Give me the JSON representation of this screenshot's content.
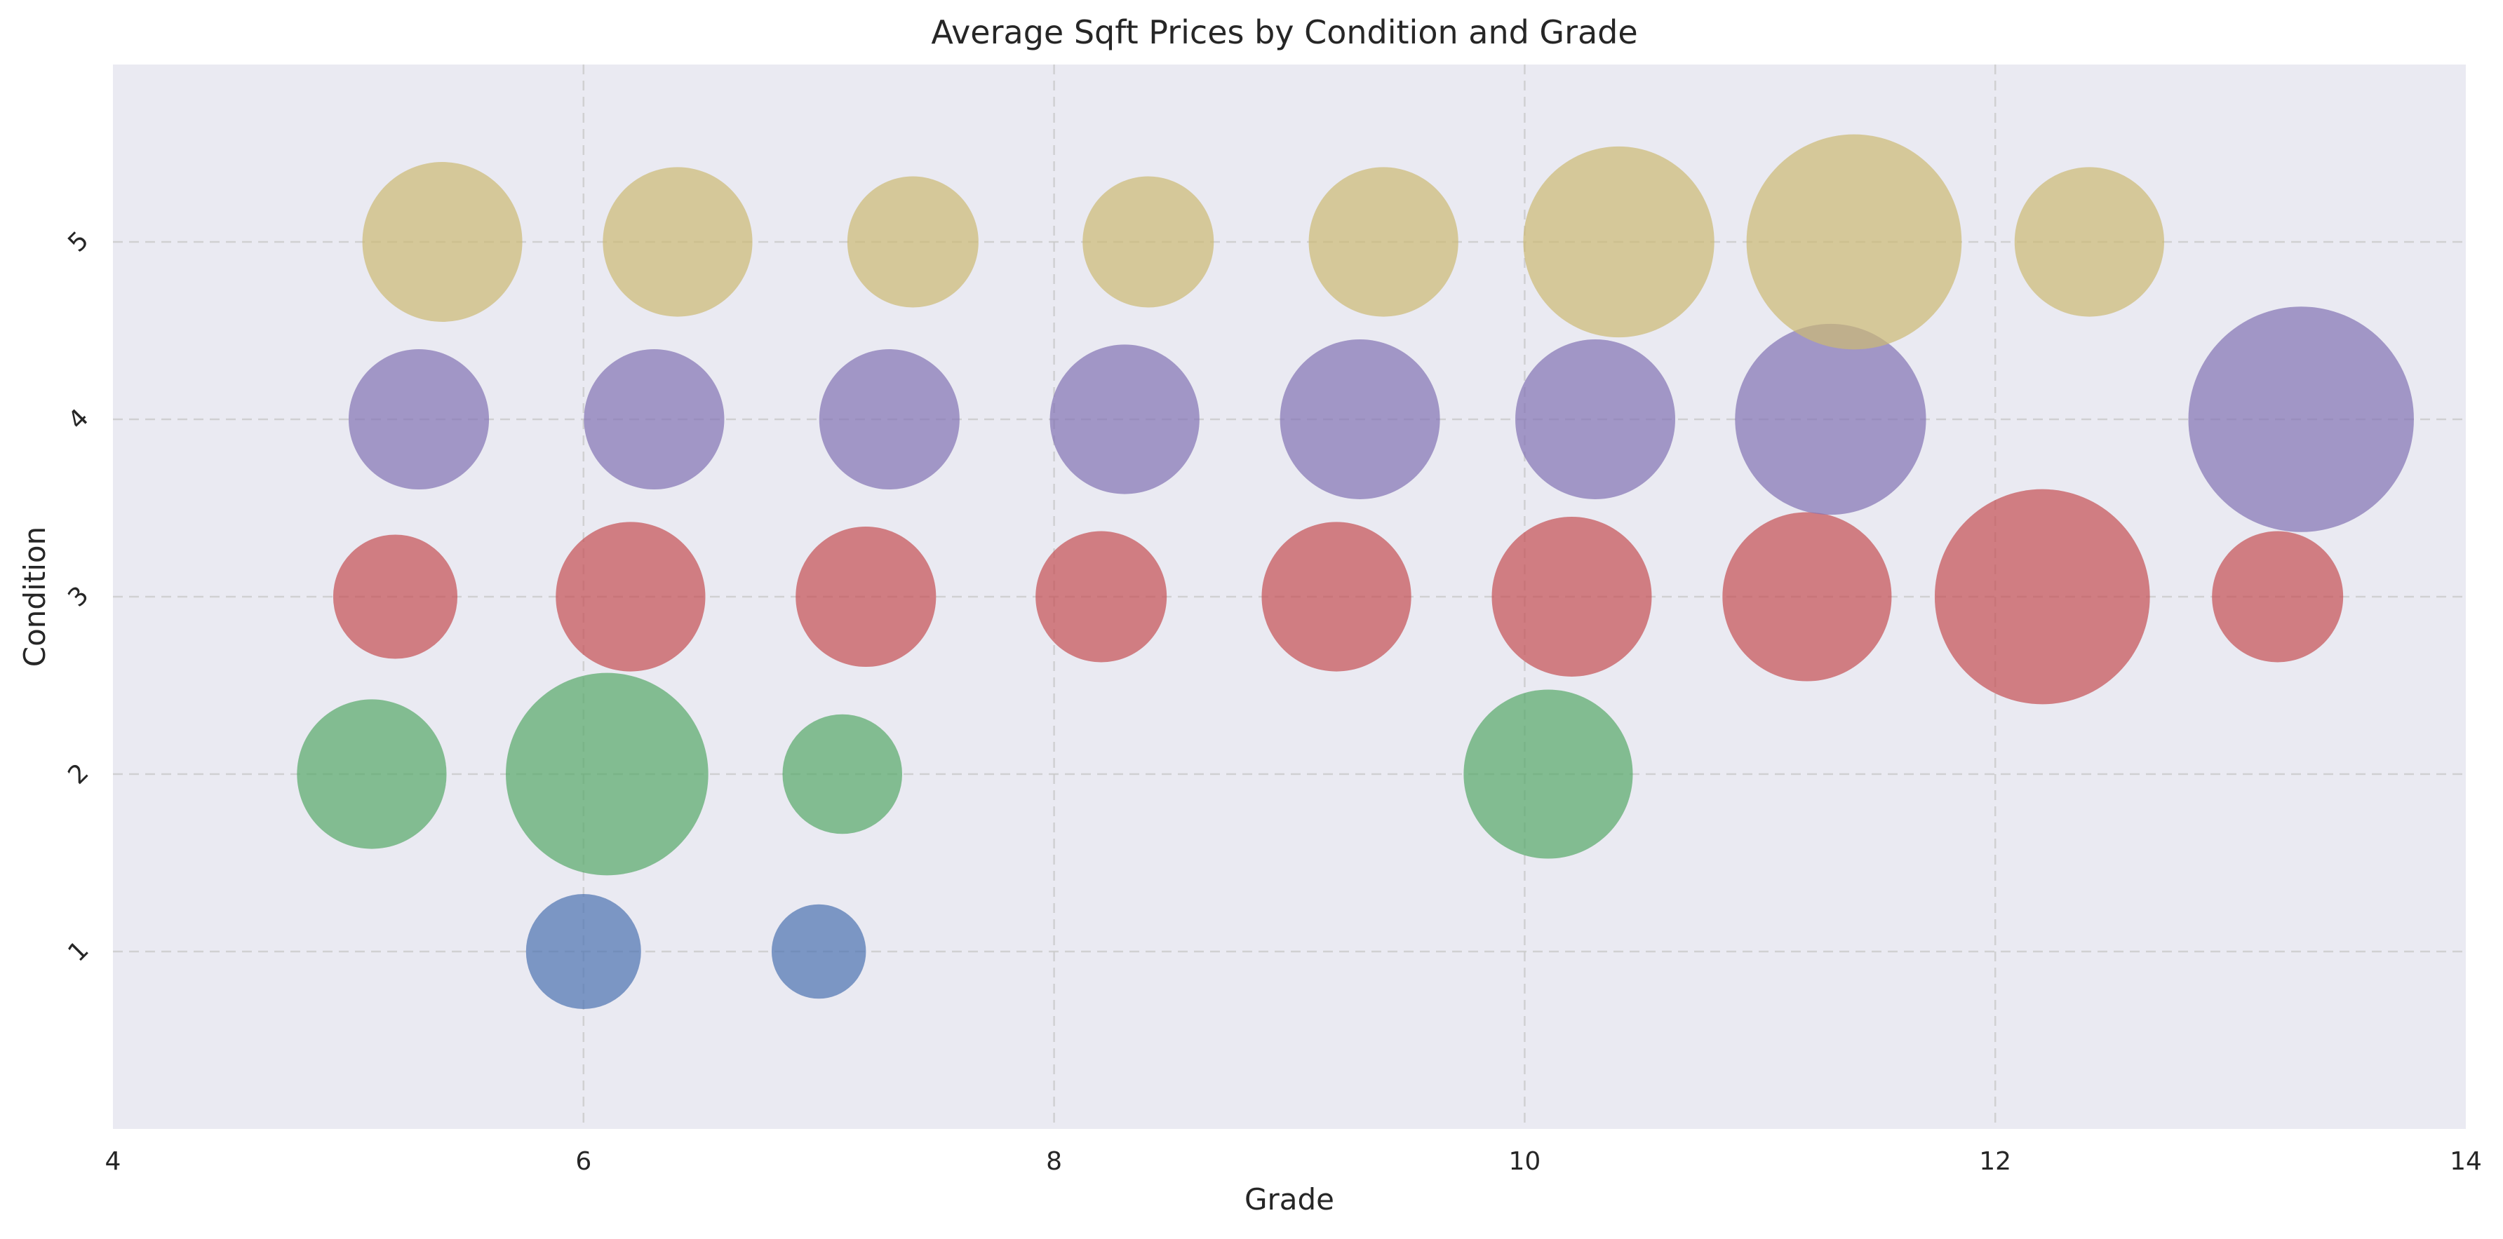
{
  "chart_data": {
    "type": "scatter",
    "title": "Average Sqft Prices by Condition and Grade",
    "xlabel": "Grade",
    "ylabel": "Condition",
    "xlim": [
      4,
      14
    ],
    "ylim": [
      0,
      6
    ],
    "xticks": [
      4,
      6,
      8,
      10,
      12,
      14
    ],
    "yticks": [
      1,
      2,
      3,
      4,
      5
    ],
    "grid": true,
    "legend": "none",
    "size_encoding": "relative average sqft price (bubble area)",
    "series": [
      {
        "condition": 1,
        "color": "#4c72b0",
        "points": [
          {
            "x": 6,
            "y": 1,
            "size": 1.0
          },
          {
            "x": 7,
            "y": 1,
            "size": 0.82
          }
        ]
      },
      {
        "condition": 2,
        "color": "#55a868",
        "points": [
          {
            "x": 5.1,
            "y": 2,
            "size": 1.3
          },
          {
            "x": 6.1,
            "y": 2,
            "size": 1.76
          },
          {
            "x": 7.1,
            "y": 2,
            "size": 1.04
          },
          {
            "x": 10.1,
            "y": 2,
            "size": 1.47
          }
        ]
      },
      {
        "condition": 3,
        "color": "#c44e52",
        "points": [
          {
            "x": 5.2,
            "y": 3,
            "size": 1.08
          },
          {
            "x": 6.2,
            "y": 3,
            "size": 1.3
          },
          {
            "x": 7.2,
            "y": 3,
            "size": 1.22
          },
          {
            "x": 8.2,
            "y": 3,
            "size": 1.14
          },
          {
            "x": 9.2,
            "y": 3,
            "size": 1.3
          },
          {
            "x": 10.2,
            "y": 3,
            "size": 1.39
          },
          {
            "x": 11.2,
            "y": 3,
            "size": 1.47
          },
          {
            "x": 12.2,
            "y": 3,
            "size": 1.87
          },
          {
            "x": 13.2,
            "y": 3,
            "size": 1.14
          }
        ]
      },
      {
        "condition": 4,
        "color": "#8172b3",
        "points": [
          {
            "x": 5.3,
            "y": 4,
            "size": 1.22
          },
          {
            "x": 6.3,
            "y": 4,
            "size": 1.22
          },
          {
            "x": 7.3,
            "y": 4,
            "size": 1.22
          },
          {
            "x": 8.3,
            "y": 4,
            "size": 1.3
          },
          {
            "x": 9.3,
            "y": 4,
            "size": 1.39
          },
          {
            "x": 10.3,
            "y": 4,
            "size": 1.39
          },
          {
            "x": 11.3,
            "y": 4,
            "size": 1.66
          },
          {
            "x": 13.3,
            "y": 4,
            "size": 1.96
          }
        ]
      },
      {
        "condition": 5,
        "color": "#ccb974",
        "points": [
          {
            "x": 5.4,
            "y": 5,
            "size": 1.39
          },
          {
            "x": 6.4,
            "y": 5,
            "size": 1.3
          },
          {
            "x": 7.4,
            "y": 5,
            "size": 1.14
          },
          {
            "x": 8.4,
            "y": 5,
            "size": 1.14
          },
          {
            "x": 9.4,
            "y": 5,
            "size": 1.3
          },
          {
            "x": 10.4,
            "y": 5,
            "size": 1.66
          },
          {
            "x": 11.4,
            "y": 5,
            "size": 1.87
          },
          {
            "x": 12.4,
            "y": 5,
            "size": 1.3
          }
        ]
      }
    ]
  }
}
